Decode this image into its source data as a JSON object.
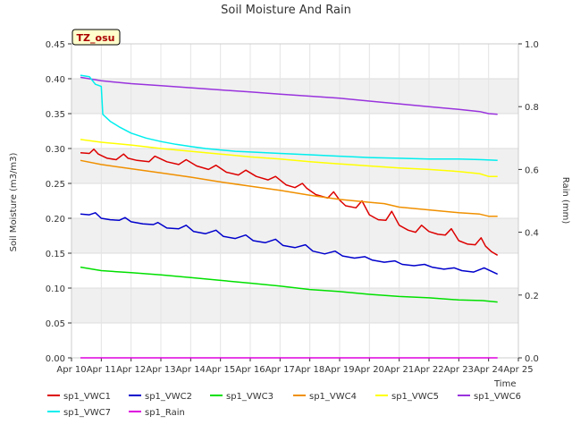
{
  "chart_data": {
    "type": "line",
    "title": "Soil Moisture And Rain",
    "badge": "TZ_osu",
    "xlabel": "Time",
    "ylabel": "Soil Moisture (m3/m3)",
    "y2label": "Rain (mm)",
    "xlim": [
      10,
      25
    ],
    "ylim": [
      0,
      0.45
    ],
    "y2lim": [
      0,
      1.0
    ],
    "x_ticks": [
      {
        "v": 10,
        "label": "Apr 10"
      },
      {
        "v": 11,
        "label": "Apr 11"
      },
      {
        "v": 12,
        "label": "Apr 12"
      },
      {
        "v": 13,
        "label": "Apr 13"
      },
      {
        "v": 14,
        "label": "Apr 14"
      },
      {
        "v": 15,
        "label": "Apr 15"
      },
      {
        "v": 16,
        "label": "Apr 16"
      },
      {
        "v": 17,
        "label": "Apr 17"
      },
      {
        "v": 18,
        "label": "Apr 18"
      },
      {
        "v": 19,
        "label": "Apr 19"
      },
      {
        "v": 20,
        "label": "Apr 20"
      },
      {
        "v": 21,
        "label": "Apr 21"
      },
      {
        "v": 22,
        "label": "Apr 22"
      },
      {
        "v": 23,
        "label": "Apr 23"
      },
      {
        "v": 24,
        "label": "Apr 24"
      },
      {
        "v": 25,
        "label": "Apr 25"
      }
    ],
    "y_ticks": [
      {
        "v": 0.0,
        "label": "0.00"
      },
      {
        "v": 0.05,
        "label": "0.05"
      },
      {
        "v": 0.1,
        "label": "0.10"
      },
      {
        "v": 0.15,
        "label": "0.15"
      },
      {
        "v": 0.2,
        "label": "0.20"
      },
      {
        "v": 0.25,
        "label": "0.25"
      },
      {
        "v": 0.3,
        "label": "0.30"
      },
      {
        "v": 0.35,
        "label": "0.35"
      },
      {
        "v": 0.4,
        "label": "0.40"
      },
      {
        "v": 0.45,
        "label": "0.45"
      }
    ],
    "y2_ticks": [
      {
        "v": 0.0,
        "label": "0.0"
      },
      {
        "v": 0.2,
        "label": "0.2"
      },
      {
        "v": 0.4,
        "label": "0.4"
      },
      {
        "v": 0.6,
        "label": "0.6"
      },
      {
        "v": 0.8,
        "label": "0.8"
      },
      {
        "v": 1.0,
        "label": "1.0"
      }
    ],
    "grid": true,
    "legend_position": "bottom",
    "series": [
      {
        "name": "sp1_VWC1",
        "color": "#dd0000",
        "axis": "left",
        "x": [
          10.3,
          10.6,
          10.75,
          10.9,
          11.0,
          11.2,
          11.5,
          11.75,
          11.9,
          12.2,
          12.6,
          12.8,
          13.2,
          13.6,
          13.85,
          14.2,
          14.6,
          14.85,
          15.2,
          15.6,
          15.85,
          16.2,
          16.6,
          16.85,
          17.2,
          17.5,
          17.75,
          17.9,
          18.2,
          18.6,
          18.8,
          19.0,
          19.2,
          19.55,
          19.75,
          20.0,
          20.3,
          20.55,
          20.75,
          21.0,
          21.3,
          21.55,
          21.75,
          22.0,
          22.3,
          22.55,
          22.75,
          23.0,
          23.3,
          23.55,
          23.75,
          23.9,
          24.1,
          24.3
        ],
        "y": [
          0.294,
          0.293,
          0.299,
          0.292,
          0.29,
          0.286,
          0.284,
          0.292,
          0.286,
          0.283,
          0.281,
          0.289,
          0.281,
          0.277,
          0.284,
          0.275,
          0.27,
          0.276,
          0.266,
          0.262,
          0.269,
          0.26,
          0.255,
          0.26,
          0.248,
          0.244,
          0.25,
          0.243,
          0.234,
          0.229,
          0.238,
          0.226,
          0.218,
          0.215,
          0.225,
          0.205,
          0.198,
          0.197,
          0.21,
          0.19,
          0.183,
          0.18,
          0.19,
          0.181,
          0.177,
          0.176,
          0.185,
          0.168,
          0.163,
          0.162,
          0.172,
          0.16,
          0.152,
          0.147
        ]
      },
      {
        "name": "sp1_VWC2",
        "color": "#0000cc",
        "axis": "left",
        "x": [
          10.3,
          10.6,
          10.8,
          11.0,
          11.3,
          11.6,
          11.8,
          12.0,
          12.4,
          12.75,
          12.9,
          13.2,
          13.6,
          13.85,
          14.1,
          14.5,
          14.85,
          15.1,
          15.5,
          15.85,
          16.1,
          16.5,
          16.85,
          17.1,
          17.5,
          17.85,
          18.1,
          18.5,
          18.85,
          19.1,
          19.5,
          19.85,
          20.1,
          20.5,
          20.85,
          21.1,
          21.5,
          21.85,
          22.1,
          22.5,
          22.85,
          23.1,
          23.5,
          23.85,
          24.1,
          24.3
        ],
        "y": [
          0.206,
          0.205,
          0.208,
          0.2,
          0.198,
          0.197,
          0.201,
          0.195,
          0.192,
          0.191,
          0.194,
          0.186,
          0.185,
          0.19,
          0.181,
          0.178,
          0.183,
          0.174,
          0.171,
          0.176,
          0.168,
          0.165,
          0.17,
          0.161,
          0.158,
          0.162,
          0.153,
          0.149,
          0.153,
          0.146,
          0.143,
          0.145,
          0.14,
          0.137,
          0.139,
          0.134,
          0.132,
          0.134,
          0.13,
          0.127,
          0.129,
          0.125,
          0.123,
          0.129,
          0.124,
          0.12
        ]
      },
      {
        "name": "sp1_VWC3",
        "color": "#00e000",
        "axis": "left",
        "x": [
          10.3,
          11.0,
          12.0,
          13.0,
          14.0,
          15.0,
          16.0,
          17.0,
          18.0,
          19.0,
          20.0,
          21.0,
          22.0,
          23.0,
          23.8,
          24.3
        ],
        "y": [
          0.13,
          0.125,
          0.122,
          0.119,
          0.115,
          0.111,
          0.107,
          0.103,
          0.098,
          0.095,
          0.091,
          0.088,
          0.086,
          0.083,
          0.082,
          0.08
        ]
      },
      {
        "name": "sp1_VWC4",
        "color": "#f09000",
        "axis": "left",
        "x": [
          10.3,
          11.0,
          12.0,
          13.0,
          14.0,
          15.0,
          16.0,
          17.0,
          18.0,
          19.0,
          20.0,
          20.5,
          21.0,
          22.0,
          23.0,
          23.7,
          24.0,
          24.3
        ],
        "y": [
          0.283,
          0.277,
          0.271,
          0.265,
          0.259,
          0.252,
          0.246,
          0.24,
          0.233,
          0.227,
          0.223,
          0.221,
          0.216,
          0.212,
          0.208,
          0.206,
          0.203,
          0.203
        ]
      },
      {
        "name": "sp1_VWC5",
        "color": "#ffff00",
        "axis": "left",
        "x": [
          10.3,
          11.0,
          12.0,
          13.0,
          14.0,
          15.0,
          16.0,
          17.0,
          18.0,
          19.0,
          20.0,
          21.0,
          22.0,
          23.0,
          23.7,
          24.0,
          24.3
        ],
        "y": [
          0.313,
          0.309,
          0.305,
          0.3,
          0.296,
          0.292,
          0.288,
          0.285,
          0.281,
          0.278,
          0.275,
          0.272,
          0.27,
          0.267,
          0.264,
          0.26,
          0.26
        ]
      },
      {
        "name": "sp1_VWC6",
        "color": "#9933dd",
        "axis": "left",
        "x": [
          10.3,
          11.0,
          12.0,
          13.0,
          14.0,
          15.0,
          16.0,
          17.0,
          18.0,
          19.0,
          20.0,
          21.0,
          22.0,
          23.0,
          23.7,
          24.0,
          24.3
        ],
        "y": [
          0.402,
          0.397,
          0.393,
          0.39,
          0.387,
          0.384,
          0.381,
          0.378,
          0.375,
          0.372,
          0.368,
          0.364,
          0.36,
          0.356,
          0.353,
          0.35,
          0.349
        ]
      },
      {
        "name": "sp1_VWC7",
        "color": "#00eeee",
        "axis": "left",
        "x": [
          10.3,
          10.6,
          10.8,
          11.0,
          11.05,
          11.3,
          11.6,
          12.0,
          12.5,
          13.0,
          13.5,
          14.0,
          14.5,
          15.0,
          15.5,
          16.0,
          17.0,
          18.0,
          19.0,
          20.0,
          21.0,
          22.0,
          23.0,
          23.8,
          24.3
        ],
        "y": [
          0.405,
          0.403,
          0.392,
          0.389,
          0.349,
          0.339,
          0.331,
          0.322,
          0.315,
          0.31,
          0.306,
          0.303,
          0.3,
          0.298,
          0.296,
          0.295,
          0.293,
          0.291,
          0.289,
          0.287,
          0.286,
          0.285,
          0.285,
          0.284,
          0.283
        ]
      },
      {
        "name": "sp1_Rain",
        "color": "#dd00dd",
        "axis": "right",
        "x": [
          10.3,
          24.3
        ],
        "y": [
          0.0,
          0.0
        ]
      }
    ]
  }
}
